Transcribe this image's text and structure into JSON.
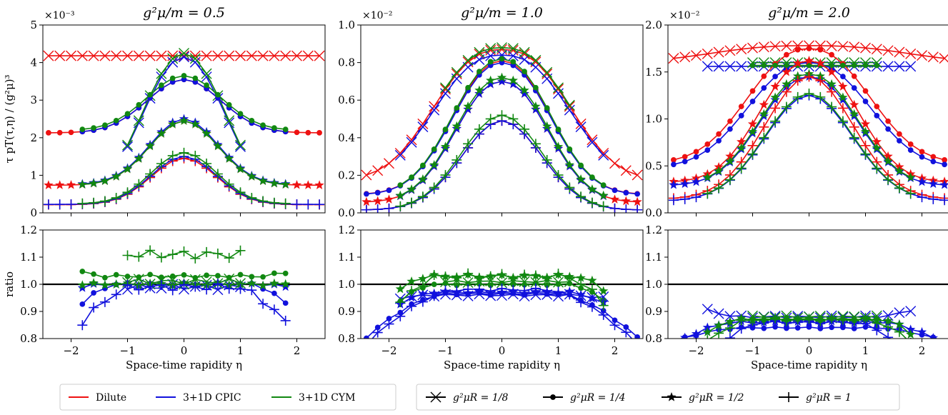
{
  "colors": {
    "dilute": "#ee1111",
    "cpic": "#1111dd",
    "cym": "#118811",
    "reference": "#000000"
  },
  "legend": {
    "models": [
      {
        "key": "dilute",
        "label": "Dilute"
      },
      {
        "key": "cpic",
        "label": "3+1D CPIC"
      },
      {
        "key": "cym",
        "label": "3+1D CYM"
      }
    ],
    "sizes": [
      {
        "marker": "x",
        "label": "g²μR = 1/8"
      },
      {
        "marker": "circle",
        "label": "g²μR = 1/4"
      },
      {
        "marker": "star",
        "label": "g²μR = 1/2"
      },
      {
        "marker": "plus",
        "label": "g²μR = 1"
      }
    ]
  },
  "chart_data": [
    {
      "type": "line",
      "panel": "top-left",
      "title": "g²μ/m = 0.5",
      "ylabel": "τ pT(τ,η) / (g²μ)³",
      "xlabel": "",
      "scale_label": "×10⁻³",
      "scale": 0.001,
      "xlim": [
        -2.5,
        2.5
      ],
      "ylim": [
        0,
        5
      ],
      "xticks": [
        -2,
        -1,
        0,
        1,
        2
      ],
      "yticks": [
        0,
        1,
        2,
        3,
        4,
        5
      ],
      "ytick_labels": [
        "0",
        "1",
        "2",
        "3",
        "4",
        "5"
      ],
      "series": [
        {
          "model": "dilute",
          "marker": "x",
          "range": [
            -2.4,
            2.4
          ],
          "peak": 4.18,
          "sigma": 1.05,
          "p": 2.0,
          "base": 1.0
        },
        {
          "model": "cpic",
          "marker": "x",
          "range": [
            -1.0,
            1.0
          ],
          "peak": 4.15,
          "sigma": 1.08,
          "p": 2.0,
          "base": 0
        },
        {
          "model": "cym",
          "marker": "x",
          "range": [
            -1.0,
            1.0
          ],
          "peak": 4.25,
          "sigma": 1.08,
          "p": 2.0,
          "base": 0
        },
        {
          "model": "dilute",
          "marker": "circle",
          "range": [
            -2.4,
            2.4
          ],
          "peak": 3.55,
          "sigma": 0.92,
          "p": 2.0,
          "base": 0.6
        },
        {
          "model": "cpic",
          "marker": "circle",
          "range": [
            -1.8,
            1.8
          ],
          "peak": 3.55,
          "sigma": 0.92,
          "p": 2.0,
          "base": 0.6
        },
        {
          "model": "cym",
          "marker": "circle",
          "range": [
            -1.8,
            1.8
          ],
          "peak": 3.65,
          "sigma": 0.92,
          "p": 2.0,
          "base": 0.6
        },
        {
          "model": "dilute",
          "marker": "star",
          "range": [
            -2.4,
            2.4
          ],
          "peak": 2.45,
          "sigma": 0.85,
          "p": 2.0,
          "base": 0.3
        },
        {
          "model": "cpic",
          "marker": "star",
          "range": [
            -1.8,
            1.8
          ],
          "peak": 2.5,
          "sigma": 0.85,
          "p": 2.0,
          "base": 0.3
        },
        {
          "model": "cym",
          "marker": "star",
          "range": [
            -1.8,
            1.8
          ],
          "peak": 2.45,
          "sigma": 0.85,
          "p": 2.0,
          "base": 0.3
        },
        {
          "model": "dilute",
          "marker": "plus",
          "range": [
            -2.4,
            2.4
          ],
          "peak": 1.45,
          "sigma": 0.82,
          "p": 2.0,
          "base": 0.15
        },
        {
          "model": "cpic",
          "marker": "plus",
          "range": [
            -2.4,
            2.4
          ],
          "peak": 1.5,
          "sigma": 0.82,
          "p": 2.0,
          "base": 0.15
        },
        {
          "model": "cym",
          "marker": "plus",
          "range": [
            -1.8,
            1.8
          ],
          "peak": 1.6,
          "sigma": 0.82,
          "p": 2.0,
          "base": 0.15
        }
      ]
    },
    {
      "type": "line",
      "panel": "top-middle",
      "title": "g²μ/m = 1.0",
      "ylabel": "",
      "xlabel": "",
      "scale_label": "×10⁻²",
      "scale": 0.01,
      "xlim": [
        -2.5,
        2.5
      ],
      "ylim": [
        0,
        1.0
      ],
      "xticks": [
        -2,
        -1,
        0,
        1,
        2
      ],
      "yticks": [
        0,
        0.2,
        0.4,
        0.6,
        0.8,
        1.0
      ],
      "ytick_labels": [
        "0.0",
        "0.2",
        "0.4",
        "0.6",
        "0.8",
        "1.0"
      ],
      "series": [
        {
          "model": "dilute",
          "marker": "x",
          "range": [
            -2.4,
            2.4
          ],
          "peak": 0.87,
          "sigma": 1.5,
          "p": 2.5,
          "base": 0.2
        },
        {
          "model": "cpic",
          "marker": "x",
          "range": [
            -1.8,
            1.8
          ],
          "peak": 0.84,
          "sigma": 1.5,
          "p": 2.5,
          "base": 0.2
        },
        {
          "model": "cym",
          "marker": "x",
          "range": [
            -1.0,
            1.2
          ],
          "peak": 0.88,
          "sigma": 1.5,
          "p": 2.5,
          "base": 0.2
        },
        {
          "model": "dilute",
          "marker": "circle",
          "range": [
            -2.4,
            2.4
          ],
          "peak": 0.81,
          "sigma": 1.15,
          "p": 2.2,
          "base": 0.12
        },
        {
          "model": "cpic",
          "marker": "circle",
          "range": [
            -2.4,
            2.4
          ],
          "peak": 0.8,
          "sigma": 1.15,
          "p": 2.2,
          "base": 0.12
        },
        {
          "model": "cym",
          "marker": "circle",
          "range": [
            -1.8,
            1.8
          ],
          "peak": 0.82,
          "sigma": 1.15,
          "p": 2.2,
          "base": 0.12
        },
        {
          "model": "dilute",
          "marker": "star",
          "range": [
            -2.4,
            2.4
          ],
          "peak": 0.7,
          "sigma": 1.1,
          "p": 2.2,
          "base": 0.08
        },
        {
          "model": "cpic",
          "marker": "star",
          "range": [
            -1.8,
            1.8
          ],
          "peak": 0.7,
          "sigma": 1.1,
          "p": 2.2,
          "base": 0.08
        },
        {
          "model": "cym",
          "marker": "star",
          "range": [
            -1.8,
            1.8
          ],
          "peak": 0.72,
          "sigma": 1.1,
          "p": 2.2,
          "base": 0.08
        },
        {
          "model": "dilute",
          "marker": "plus",
          "range": [
            -2.4,
            2.4
          ],
          "peak": 0.49,
          "sigma": 1.0,
          "p": 2.0,
          "base": 0.03
        },
        {
          "model": "cpic",
          "marker": "plus",
          "range": [
            -2.4,
            2.4
          ],
          "peak": 0.49,
          "sigma": 1.0,
          "p": 2.0,
          "base": 0.03
        },
        {
          "model": "cym",
          "marker": "plus",
          "range": [
            -1.8,
            1.8
          ],
          "peak": 0.52,
          "sigma": 1.0,
          "p": 2.0,
          "base": 0.03
        }
      ]
    },
    {
      "type": "line",
      "panel": "top-right",
      "title": "g²μ/m = 2.0",
      "ylabel": "",
      "xlabel": "",
      "scale_label": "×10⁻²",
      "scale": 0.01,
      "xlim": [
        -2.5,
        2.5
      ],
      "ylim": [
        0,
        2.0
      ],
      "xticks": [
        -2,
        -1,
        0,
        1,
        2
      ],
      "yticks": [
        0,
        0.5,
        1.0,
        1.5,
        2.0
      ],
      "ytick_labels": [
        "0.0",
        "0.5",
        "1.0",
        "1.5",
        "2.0"
      ],
      "series": [
        {
          "model": "dilute",
          "marker": "x",
          "range": [
            -2.4,
            2.4
          ],
          "peak": 1.78,
          "sigma": 2.1,
          "p": 2.6,
          "base": 0.9
        },
        {
          "model": "cpic",
          "marker": "x",
          "range": [
            -1.8,
            1.8
          ],
          "peak": 1.56,
          "sigma": 3.0,
          "p": 2.6,
          "base": 1.0
        },
        {
          "model": "cym",
          "marker": "x",
          "range": [
            -1.0,
            1.2
          ],
          "peak": 1.6,
          "sigma": 3.0,
          "p": 2.6,
          "base": 1.0
        },
        {
          "model": "dilute",
          "marker": "circle",
          "range": [
            -2.4,
            2.4
          ],
          "peak": 1.75,
          "sigma": 1.4,
          "p": 2.3,
          "base": 0.3
        },
        {
          "model": "cpic",
          "marker": "circle",
          "range": [
            -2.4,
            2.4
          ],
          "peak": 1.6,
          "sigma": 1.4,
          "p": 2.3,
          "base": 0.3
        },
        {
          "model": "cym",
          "marker": "circle",
          "range": [
            -1.0,
            1.2
          ],
          "peak": 1.57,
          "sigma": 3.0,
          "p": 2.6,
          "base": 1.0
        },
        {
          "model": "dilute",
          "marker": "star",
          "range": [
            -2.4,
            2.4
          ],
          "peak": 1.62,
          "sigma": 1.15,
          "p": 2.2,
          "base": 0.2
        },
        {
          "model": "cpic",
          "marker": "star",
          "range": [
            -2.4,
            2.4
          ],
          "peak": 1.45,
          "sigma": 1.15,
          "p": 2.2,
          "base": 0.2
        },
        {
          "model": "cym",
          "marker": "star",
          "range": [
            -1.8,
            1.8
          ],
          "peak": 1.48,
          "sigma": 1.15,
          "p": 2.2,
          "base": 0.2
        },
        {
          "model": "dilute",
          "marker": "plus",
          "range": [
            -2.4,
            2.4
          ],
          "peak": 1.45,
          "sigma": 1.1,
          "p": 2.0,
          "base": 0.1
        },
        {
          "model": "cpic",
          "marker": "plus",
          "range": [
            -2.4,
            2.4
          ],
          "peak": 1.25,
          "sigma": 1.1,
          "p": 2.0,
          "base": 0.1
        },
        {
          "model": "cym",
          "marker": "plus",
          "range": [
            -1.8,
            1.8
          ],
          "peak": 1.27,
          "sigma": 1.1,
          "p": 2.0,
          "base": 0.1
        }
      ]
    },
    {
      "type": "line",
      "panel": "bottom-left",
      "title": "",
      "ylabel": "ratio",
      "xlabel": "Space-time rapidity η",
      "xlim": [
        -2.5,
        2.5
      ],
      "ylim": [
        0.8,
        1.2
      ],
      "reference_line": 1.0,
      "xticks": [
        -2,
        -1,
        0,
        1,
        2
      ],
      "yticks": [
        0.8,
        0.9,
        1.0,
        1.1,
        1.2
      ],
      "ytick_labels": [
        "0.8",
        "0.9",
        "1.0",
        "1.1",
        "1.2"
      ],
      "series": [
        {
          "model": "cpic",
          "marker": "x",
          "range": [
            -1.0,
            1.0
          ],
          "center": 0.99,
          "noise": 0.01
        },
        {
          "model": "cym",
          "marker": "x",
          "range": [
            -1.0,
            1.0
          ],
          "center": 1.01,
          "noise": 0.01
        },
        {
          "model": "cpic",
          "marker": "circle",
          "range": [
            -1.8,
            1.8
          ],
          "center": 1.0,
          "edge": -0.07,
          "edge_from": 1.2,
          "noise": 0.005
        },
        {
          "model": "cym",
          "marker": "circle",
          "range": [
            -1.8,
            1.8
          ],
          "center": 1.03,
          "edge": 0.015,
          "edge_from": 1.4,
          "noise": 0.006
        },
        {
          "model": "cpic",
          "marker": "star",
          "range": [
            -1.8,
            1.8
          ],
          "center": 1.0,
          "edge": -0.01,
          "edge_from": 1.4,
          "noise": 0.005
        },
        {
          "model": "cym",
          "marker": "star",
          "range": [
            -1.8,
            1.8
          ],
          "center": 1.0,
          "edge": 0.0,
          "edge_from": 1.4,
          "noise": 0.005
        },
        {
          "model": "cpic",
          "marker": "plus",
          "range": [
            -1.8,
            1.8
          ],
          "center": 0.99,
          "edge": -0.13,
          "edge_from": 0.9,
          "noise": 0.012
        },
        {
          "model": "cym",
          "marker": "plus",
          "range": [
            -1.0,
            1.0
          ],
          "center": 1.11,
          "noise": 0.015
        }
      ]
    },
    {
      "type": "line",
      "panel": "bottom-middle",
      "title": "",
      "ylabel": "",
      "xlabel": "Space-time rapidity η",
      "xlim": [
        -2.5,
        2.5
      ],
      "ylim": [
        0.8,
        1.2
      ],
      "reference_line": 1.0,
      "xticks": [
        -2,
        -1,
        0,
        1,
        2
      ],
      "yticks": [
        0.8,
        0.9,
        1.0,
        1.1,
        1.2
      ],
      "ytick_labels": [
        "0.8",
        "0.9",
        "1.0",
        "1.1",
        "1.2"
      ],
      "series": [
        {
          "model": "cpic",
          "marker": "x",
          "range": [
            -1.8,
            1.8
          ],
          "center": 0.96,
          "edge": -0.01,
          "edge_from": 1.2,
          "noise": 0.004
        },
        {
          "model": "cym",
          "marker": "x",
          "range": [
            -1.0,
            1.2
          ],
          "center": 1.01,
          "noise": 0.004
        },
        {
          "model": "cpic",
          "marker": "circle",
          "range": [
            -2.4,
            2.4
          ],
          "center": 0.965,
          "edge": -0.16,
          "edge_from": 1.0,
          "noise": 0.004
        },
        {
          "model": "cym",
          "marker": "circle",
          "range": [
            -1.8,
            1.8
          ],
          "center": 1.0,
          "edge": -0.06,
          "edge_from": 1.2,
          "noise": 0.004
        },
        {
          "model": "cpic",
          "marker": "star",
          "range": [
            -1.8,
            1.8
          ],
          "center": 0.97,
          "edge": -0.04,
          "edge_from": 1.2,
          "noise": 0.004
        },
        {
          "model": "cym",
          "marker": "star",
          "range": [
            -1.8,
            1.8
          ],
          "center": 1.03,
          "edge": -0.05,
          "edge_from": 1.3,
          "noise": 0.006
        },
        {
          "model": "cpic",
          "marker": "plus",
          "range": [
            -2.4,
            2.4
          ],
          "center": 0.98,
          "edge": -0.2,
          "edge_from": 0.8,
          "noise": 0.005
        },
        {
          "model": "cym",
          "marker": "plus",
          "range": [
            -1.8,
            1.8
          ],
          "center": 1.03,
          "edge": -0.1,
          "edge_from": 1.1,
          "noise": 0.01
        }
      ]
    },
    {
      "type": "line",
      "panel": "bottom-right",
      "title": "",
      "ylabel": "",
      "xlabel": "Space-time rapidity η",
      "xlim": [
        -2.5,
        2.5
      ],
      "ylim": [
        0.8,
        1.2
      ],
      "reference_line": 1.0,
      "xticks": [
        -2,
        -1,
        0,
        1,
        2
      ],
      "yticks": [
        0.8,
        0.9,
        1.0,
        1.1,
        1.2
      ],
      "ytick_labels": [
        "0.8",
        "0.9",
        "1.0",
        "1.1",
        "1.2"
      ],
      "series": [
        {
          "model": "cpic",
          "marker": "x",
          "range": [
            -1.8,
            1.8
          ],
          "center": 0.88,
          "edge": 0.025,
          "edge_from": 1.2,
          "noise": 0.004
        },
        {
          "model": "cym",
          "marker": "x",
          "range": [
            -1.0,
            1.2
          ],
          "center": 0.88,
          "noise": 0.004
        },
        {
          "model": "cpic",
          "marker": "circle",
          "range": [
            -2.4,
            2.4
          ],
          "center": 0.84,
          "edge": -0.05,
          "edge_from": 1.2,
          "noise": 0.003
        },
        {
          "model": "cym",
          "marker": "circle",
          "range": [
            -1.0,
            1.2
          ],
          "center": 0.87,
          "noise": 0.004
        },
        {
          "model": "cpic",
          "marker": "star",
          "range": [
            -2.4,
            2.4
          ],
          "center": 0.86,
          "edge": -0.08,
          "edge_from": 1.3,
          "noise": 0.004
        },
        {
          "model": "cym",
          "marker": "star",
          "range": [
            -1.8,
            1.8
          ],
          "center": 0.87,
          "edge": -0.05,
          "edge_from": 1.3,
          "noise": 0.005
        },
        {
          "model": "cpic",
          "marker": "plus",
          "range": [
            -1.8,
            1.8
          ],
          "center": 0.86,
          "edge": -0.12,
          "edge_from": 0.8,
          "noise": 0.005
        },
        {
          "model": "cym",
          "marker": "plus",
          "range": [
            -1.8,
            1.8
          ],
          "center": 0.87,
          "edge": -0.08,
          "edge_from": 1.0,
          "noise": 0.006
        }
      ]
    }
  ]
}
